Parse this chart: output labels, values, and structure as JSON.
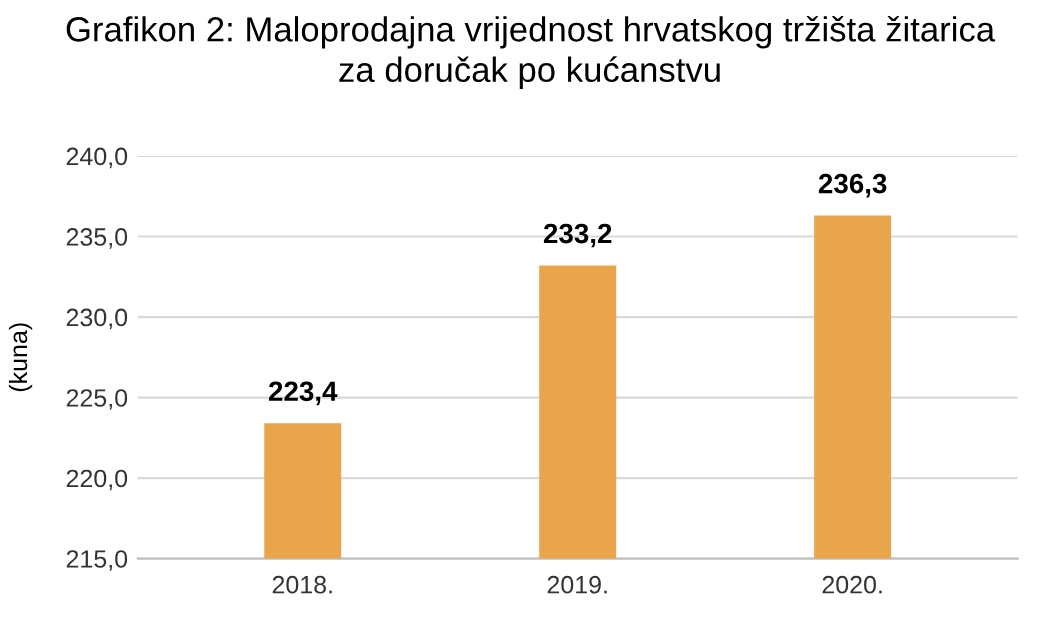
{
  "chart_data": {
    "type": "bar",
    "title": "Grafikon 2: Maloprodajna vrijednost hrvatskog tržišta žitarica\nza doručak po kućanstvu",
    "ylabel": "(kuna)",
    "categories": [
      "2018.",
      "2019.",
      "2020."
    ],
    "values": [
      223.4,
      233.2,
      236.3
    ],
    "color": "#e8a54c",
    "value_labels": [
      "223,4",
      "233,2",
      "236,3"
    ],
    "ylim": [
      215,
      240
    ],
    "yticks": [
      {
        "value": 215,
        "label": "215,0"
      },
      {
        "value": 220,
        "label": "220,0"
      },
      {
        "value": 225,
        "label": "225,0"
      },
      {
        "value": 230,
        "label": "230,0"
      },
      {
        "value": 235,
        "label": "235,0"
      },
      {
        "value": 240,
        "label": "240,0"
      }
    ],
    "grid": "y"
  }
}
